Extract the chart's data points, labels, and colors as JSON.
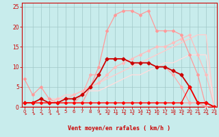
{
  "xlabel": "Vent moyen/en rafales ( km/h )",
  "bg_color": "#c8ecec",
  "grid_color": "#a0c8c8",
  "xlim": [
    -0.3,
    23.3
  ],
  "ylim": [
    0,
    26
  ],
  "x_ticks": [
    0,
    1,
    2,
    3,
    4,
    5,
    6,
    7,
    8,
    9,
    10,
    11,
    12,
    13,
    14,
    15,
    16,
    17,
    18,
    19,
    20,
    21,
    22,
    23
  ],
  "y_ticks": [
    0,
    5,
    10,
    15,
    20,
    25
  ],
  "lines": [
    {
      "x": [
        0,
        1,
        2,
        3,
        4,
        5,
        6,
        7,
        8,
        9,
        10,
        11,
        12,
        13,
        14,
        15,
        16,
        17,
        18,
        19,
        20,
        21,
        22,
        23
      ],
      "y": [
        7,
        3,
        5,
        2,
        1,
        1,
        1,
        1,
        1,
        1,
        1,
        1,
        1,
        1,
        1,
        1,
        1,
        1,
        1,
        1,
        1,
        1,
        0,
        0
      ],
      "color": "#ff9999",
      "lw": 0.9,
      "marker": "D",
      "ms": 2.0
    },
    {
      "x": [
        0,
        1,
        2,
        3,
        4,
        5,
        6,
        7,
        8,
        9,
        10,
        11,
        12,
        13,
        14,
        15,
        16,
        17,
        18,
        19,
        20,
        21,
        22,
        23
      ],
      "y": [
        1,
        1,
        1,
        1,
        2,
        2,
        3,
        4,
        5,
        6,
        8,
        10,
        11,
        12,
        13,
        14,
        15,
        15,
        16,
        17,
        18,
        13,
        8,
        0
      ],
      "color": "#ffbbbb",
      "lw": 0.9,
      "marker": "D",
      "ms": 2.0
    },
    {
      "x": [
        0,
        1,
        2,
        3,
        4,
        5,
        6,
        7,
        8,
        9,
        10,
        11,
        12,
        13,
        14,
        15,
        16,
        17,
        18,
        19,
        20,
        21,
        22,
        23
      ],
      "y": [
        1,
        1,
        2,
        2,
        2,
        3,
        3,
        4,
        5,
        6,
        7,
        8,
        9,
        10,
        11,
        12,
        13,
        14,
        15,
        16,
        17,
        18,
        18,
        0
      ],
      "color": "#ffcccc",
      "lw": 1.0,
      "marker": null,
      "ms": 0
    },
    {
      "x": [
        0,
        1,
        2,
        3,
        4,
        5,
        6,
        7,
        8,
        9,
        10,
        11,
        12,
        13,
        14,
        15,
        16,
        17,
        18,
        19,
        20,
        21,
        22,
        23
      ],
      "y": [
        1,
        1,
        1,
        1,
        2,
        2,
        2,
        3,
        4,
        4,
        5,
        6,
        7,
        8,
        8,
        9,
        10,
        11,
        11,
        12,
        13,
        13,
        13,
        0
      ],
      "color": "#ffdddd",
      "lw": 1.0,
      "marker": null,
      "ms": 0
    },
    {
      "x": [
        0,
        1,
        2,
        3,
        4,
        5,
        6,
        7,
        8,
        9,
        10,
        11,
        12,
        13,
        14,
        15,
        16,
        17,
        18,
        19,
        20,
        21,
        22,
        23
      ],
      "y": [
        1,
        1,
        1,
        1,
        1,
        1,
        1,
        1,
        5,
        10,
        19,
        23,
        24,
        24,
        23,
        24,
        19,
        19,
        19,
        18,
        13,
        8,
        0,
        0
      ],
      "color": "#ff9999",
      "lw": 0.9,
      "marker": "D",
      "ms": 2.0
    },
    {
      "x": [
        0,
        1,
        2,
        3,
        4,
        5,
        6,
        7,
        8,
        9,
        10,
        11,
        12,
        13,
        14,
        15,
        16,
        17,
        18,
        19,
        20,
        21,
        22,
        23
      ],
      "y": [
        1,
        1,
        1,
        1,
        1,
        1,
        1,
        3,
        8,
        8,
        12,
        12,
        12,
        11,
        11,
        11,
        10,
        10,
        8,
        5,
        1,
        1,
        0,
        0
      ],
      "color": "#ffaaaa",
      "lw": 0.9,
      "marker": "D",
      "ms": 2.0
    },
    {
      "x": [
        0,
        1,
        2,
        3,
        4,
        5,
        6,
        7,
        8,
        9,
        10,
        11,
        12,
        13,
        14,
        15,
        16,
        17,
        18,
        19,
        20,
        21,
        22,
        23
      ],
      "y": [
        1,
        1,
        2,
        1,
        1,
        2,
        2,
        3,
        5,
        8,
        12,
        12,
        12,
        11,
        11,
        11,
        10,
        10,
        9,
        8,
        5,
        1,
        1,
        0
      ],
      "color": "#cc0000",
      "lw": 1.3,
      "marker": "D",
      "ms": 2.5
    },
    {
      "x": [
        0,
        1,
        2,
        3,
        4,
        5,
        6,
        7,
        8,
        9,
        10,
        11,
        12,
        13,
        14,
        15,
        16,
        17,
        18,
        19,
        20,
        21,
        22,
        23
      ],
      "y": [
        1,
        1,
        1,
        1,
        1,
        1,
        1,
        1,
        1,
        1,
        1,
        1,
        1,
        1,
        1,
        1,
        1,
        1,
        1,
        1,
        5,
        1,
        1,
        0
      ],
      "color": "#ff0000",
      "lw": 0.9,
      "marker": "D",
      "ms": 2.0
    }
  ],
  "arrow_color": "#cc0000",
  "arrows_x": [
    0,
    1,
    2,
    3,
    4,
    9,
    10,
    11,
    12,
    13,
    14,
    15,
    16,
    17,
    18,
    19,
    20,
    21,
    22,
    23
  ]
}
